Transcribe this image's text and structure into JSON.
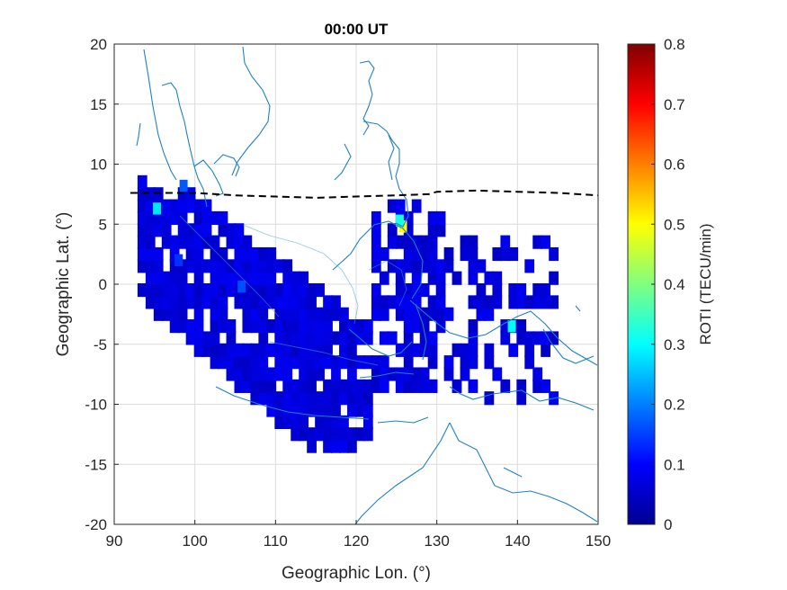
{
  "chart_data": {
    "type": "heatmap",
    "title": "00:00 UT",
    "xlabel": "Geographic Lon. (°)",
    "ylabel": "Geographic Lat. (°)",
    "xlim": [
      90,
      150
    ],
    "ylim": [
      -20,
      20
    ],
    "xticks": [
      "90",
      "100",
      "110",
      "120",
      "130",
      "140",
      "150"
    ],
    "yticks": [
      "20",
      "15",
      "10",
      "5",
      "0",
      "-5",
      "-10",
      "-15",
      "-20"
    ],
    "grid": true,
    "colorbar": {
      "label": "ROTI (TECU/min)",
      "limits": [
        0,
        0.8
      ],
      "ticks": [
        "0",
        "0.1",
        "0.2",
        "0.3",
        "0.4",
        "0.5",
        "0.6",
        "0.7",
        "0.8"
      ],
      "colormap": "jet"
    },
    "dashed_line": {
      "color": "#000000",
      "points": [
        [
          92,
          7.6
        ],
        [
          100,
          7.6
        ],
        [
          105,
          7.4
        ],
        [
          110,
          7.3
        ],
        [
          115,
          7.2
        ],
        [
          120,
          7.3
        ],
        [
          125,
          7.4
        ],
        [
          129,
          7.5
        ],
        [
          130,
          7.7
        ],
        [
          135,
          7.8
        ],
        [
          140,
          7.7
        ],
        [
          145,
          7.6
        ],
        [
          150,
          7.4
        ]
      ]
    },
    "hotspots": [
      {
        "lon": 95.3,
        "lat": 6.3,
        "roti": 0.28
      },
      {
        "lon": 125.8,
        "lat": 4.8,
        "roti": 0.5
      },
      {
        "lon": 125.4,
        "lat": 5.3,
        "roti": 0.32
      },
      {
        "lon": 139.3,
        "lat": -3.5,
        "roti": 0.3
      },
      {
        "lon": 98.6,
        "lat": 8.2,
        "roti": 0.17
      },
      {
        "lon": 105.8,
        "lat": -0.2,
        "roti": 0.16
      },
      {
        "lon": 98.0,
        "lat": 2.0,
        "roti": 0.14
      }
    ]
  }
}
